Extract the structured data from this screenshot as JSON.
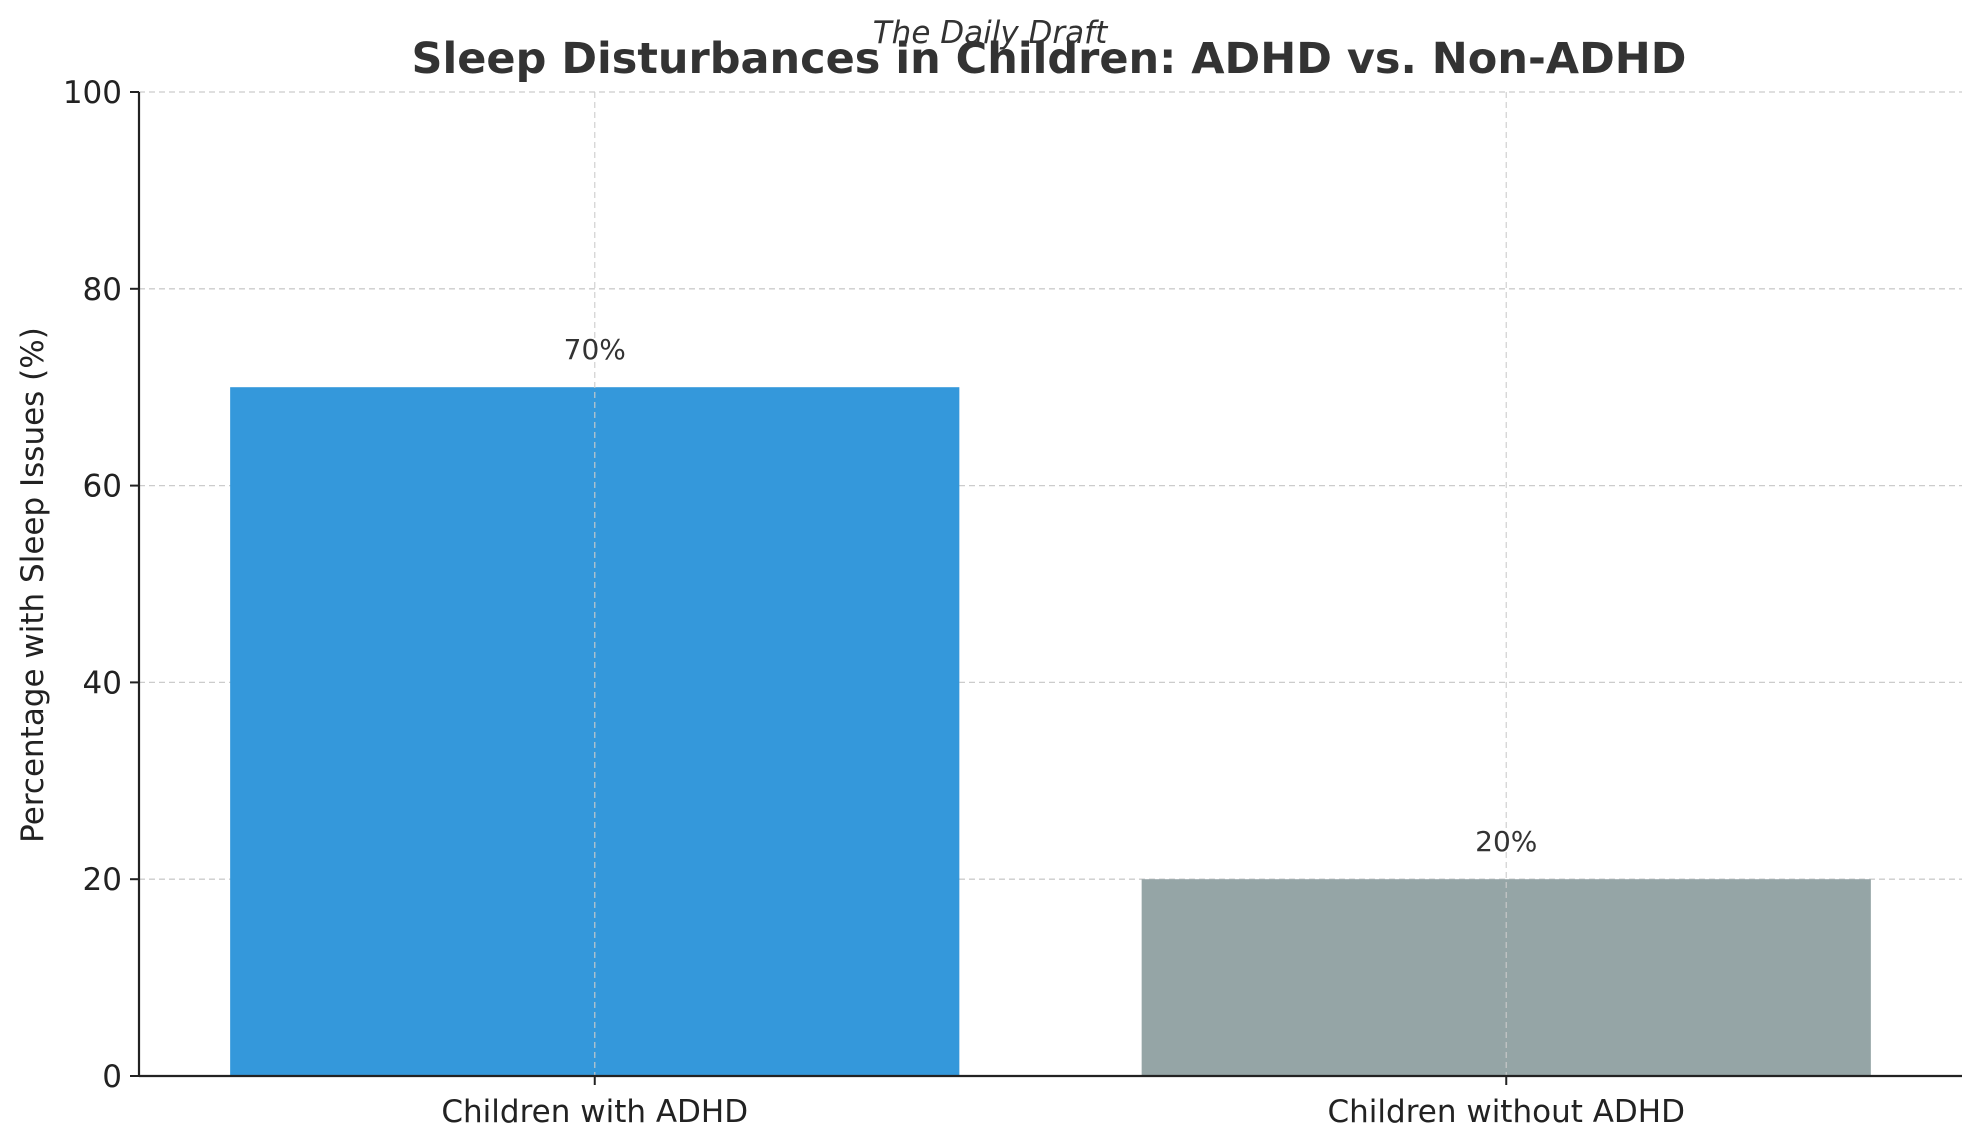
{
  "header": {
    "source": "The Daily Draft"
  },
  "chart_data": {
    "type": "bar",
    "title": "Sleep Disturbances in Children: ADHD vs. Non-ADHD",
    "xlabel": "",
    "ylabel": "Percentage with Sleep Issues (%)",
    "categories": [
      "Children with ADHD",
      "Children without ADHD"
    ],
    "values": [
      70,
      20
    ],
    "value_labels": [
      "70%",
      "20%"
    ],
    "ylim": [
      0,
      100
    ],
    "yticks": [
      0,
      20,
      40,
      60,
      80,
      100
    ],
    "grid": true,
    "grid_style": "dashed",
    "bar_colors": [
      "#3498db",
      "#95a5a6"
    ]
  }
}
